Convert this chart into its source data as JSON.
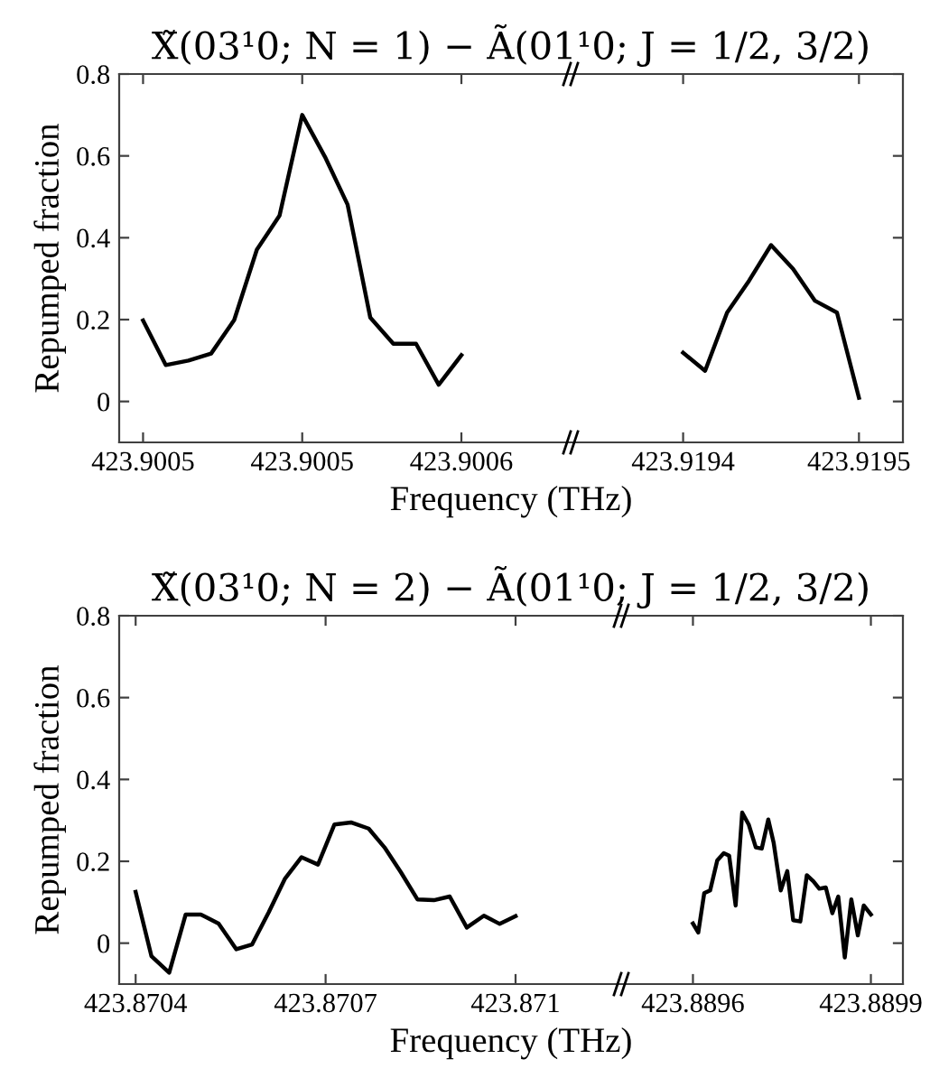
{
  "chart_data": [
    {
      "type": "line",
      "title": "X̃(03¹0; N = 1) − Ã(01¹0; J = 1/2, 3/2)",
      "xlabel": "Frequency (THz)",
      "ylabel": "Repumped fraction",
      "x": [
        423.90048,
        423.9004857,
        423.9004914,
        423.9004971,
        423.9005029,
        423.9005086,
        423.9005143,
        423.90052,
        423.9005257,
        423.9005314,
        423.9005371,
        423.9005429,
        423.9005486,
        423.9005543,
        423.90056
      ],
      "series": [
        {
          "color": "#000000",
          "values": [
            0.198,
            0.089,
            0.1,
            0.117,
            0.199,
            0.371,
            0.454,
            0.7,
            0.598,
            0.481,
            0.205,
            0.141,
            0.141,
            0.041,
            0.113
          ]
        }
      ],
      "xlim": [
        423.900474,
        423.900587
      ],
      "xticks": [
        {
          "value": 423.90048,
          "label": "423.9005"
        },
        {
          "value": 423.90052,
          "label": "423.9005"
        },
        {
          "value": 423.90056,
          "label": "423.9006"
        }
      ],
      "ylim": [
        -0.1,
        0.8
      ],
      "yticks": [
        0,
        0.2,
        0.4,
        0.6,
        0.8
      ],
      "line_style": "solid",
      "marker": "none"
    },
    {
      "type": "line",
      "x": [
        423.91942,
        423.9194275,
        423.919435,
        423.9194425,
        423.91945,
        423.9194575,
        423.919465,
        423.9194725,
        423.91948
      ],
      "series": [
        {
          "color": "#000000",
          "values": [
            0.119,
            0.075,
            0.217,
            0.295,
            0.382,
            0.324,
            0.246,
            0.217,
            0.009
          ]
        }
      ],
      "xlim": [
        423.919381,
        423.919495
      ],
      "xticks": [
        {
          "value": 423.91942,
          "label": "423.9194"
        },
        {
          "value": 423.91948,
          "label": "423.9195"
        }
      ],
      "ylim": [
        -0.1,
        0.8
      ],
      "yticks": [
        {
          "value": 0,
          "label": null
        },
        {
          "value": 0.2,
          "label": null
        },
        {
          "value": 0.4,
          "label": null
        },
        {
          "value": 0.6,
          "label": null
        },
        {
          "value": 0.8,
          "label": null
        }
      ],
      "tick_labels": "x",
      "line_style": "solid",
      "marker": "none"
    },
    {
      "type": "line",
      "title": "X̃(03¹0; N = 2) − Ã(01¹0; J = 1/2, 3/2)",
      "xlabel": "Frequency (THz)",
      "ylabel": "Repumped fraction",
      "x": [
        423.8704,
        423.870425,
        423.870453,
        423.870479,
        423.870503,
        423.870531,
        423.870559,
        423.870584,
        423.87061,
        423.870636,
        423.870662,
        423.870688,
        423.870714,
        423.87074,
        423.870768,
        423.870793,
        423.870819,
        423.870845,
        423.870871,
        423.870896,
        423.870923,
        423.87095,
        423.870975,
        423.871
      ],
      "series": [
        {
          "color": "#000000",
          "values": [
            0.125,
            -0.032,
            -0.072,
            0.07,
            0.07,
            0.048,
            -0.015,
            -0.003,
            0.075,
            0.158,
            0.21,
            0.192,
            0.29,
            0.295,
            0.28,
            0.234,
            0.173,
            0.107,
            0.105,
            0.114,
            0.038,
            0.067,
            0.047,
            0.066
          ]
        }
      ],
      "xlim": [
        423.870374,
        423.871164
      ],
      "xticks": [
        {
          "value": 423.8704,
          "label": "423.8704"
        },
        {
          "value": 423.8707,
          "label": "423.8707"
        },
        {
          "value": 423.871,
          "label": "423.871"
        }
      ],
      "ylim": [
        -0.1,
        0.8
      ],
      "yticks": [
        0,
        0.2,
        0.4,
        0.6,
        0.8
      ],
      "line_style": "solid",
      "marker": "none"
    },
    {
      "type": "line",
      "x": [
        423.8896,
        423.889609,
        423.889619,
        423.889629,
        423.889641,
        423.889652,
        423.889661,
        423.889672,
        423.889683,
        423.889694,
        423.889706,
        423.889716,
        423.889727,
        423.889736,
        423.889748,
        423.889759,
        423.889769,
        423.889781,
        423.889792,
        423.889803,
        423.889813,
        423.889824,
        423.889835,
        423.889845,
        423.889856,
        423.889867,
        423.889878,
        423.889888,
        423.8899
      ],
      "series": [
        {
          "color": "#000000",
          "values": [
            0.048,
            0.026,
            0.122,
            0.129,
            0.202,
            0.22,
            0.214,
            0.092,
            0.319,
            0.29,
            0.234,
            0.231,
            0.302,
            0.246,
            0.129,
            0.176,
            0.056,
            0.053,
            0.166,
            0.151,
            0.133,
            0.136,
            0.073,
            0.114,
            -0.035,
            0.107,
            0.019,
            0.092,
            0.07
          ]
        }
      ],
      "xlim": [
        423.889476,
        423.889954
      ],
      "xticks": [
        {
          "value": 423.8896,
          "label": "423.8896"
        },
        {
          "value": 423.8899,
          "label": "423.8899"
        }
      ],
      "ylim": [
        -0.1,
        0.8
      ],
      "yticks": [
        {
          "value": 0,
          "label": null
        },
        {
          "value": 0.2,
          "label": null
        },
        {
          "value": 0.4,
          "label": null
        },
        {
          "value": 0.6,
          "label": null
        },
        {
          "value": 0.8,
          "label": null
        }
      ],
      "tick_labels": "x",
      "line_style": "solid",
      "marker": "none"
    }
  ]
}
